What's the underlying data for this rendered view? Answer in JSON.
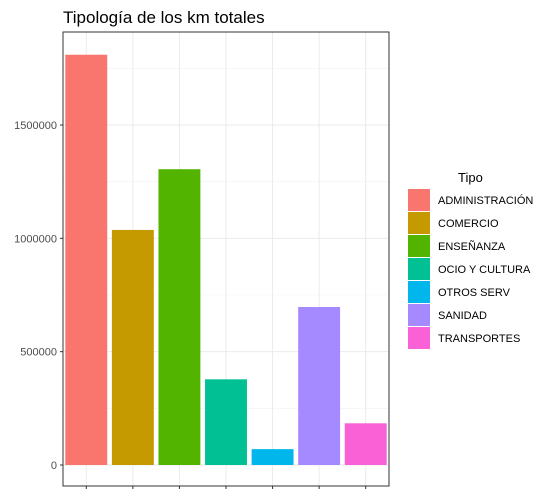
{
  "chart_data": {
    "type": "bar",
    "title": "Tipología de los km totales",
    "xlabel": "",
    "ylabel": "",
    "categories": [
      "ADMINISTRACIÓN",
      "COMERCIO",
      "ENSEÑANZA",
      "OCIO Y CULTURA",
      "OTROS SERV",
      "SANIDAD",
      "TRANSPORTES"
    ],
    "values": [
      1810000,
      1037000,
      1305000,
      378000,
      70000,
      697000,
      184000
    ],
    "colors": [
      "#F8766D",
      "#C49A00",
      "#53B400",
      "#00C094",
      "#00B6EB",
      "#A58AFF",
      "#FB61D7"
    ],
    "ylim": [
      -50000,
      1900000
    ],
    "yticks": [
      0,
      500000,
      1000000,
      1500000
    ],
    "ytick_labels": [
      "0",
      "500000",
      "1000000",
      "1500000"
    ],
    "grid": true,
    "legend": {
      "title": "Tipo",
      "position": "right",
      "entries": [
        "ADMINISTRACIÓN",
        "COMERCIO",
        "ENSEÑANZA",
        "OCIO Y CULTURA",
        "OTROS SERV",
        "SANIDAD",
        "TRANSPORTES"
      ]
    }
  }
}
